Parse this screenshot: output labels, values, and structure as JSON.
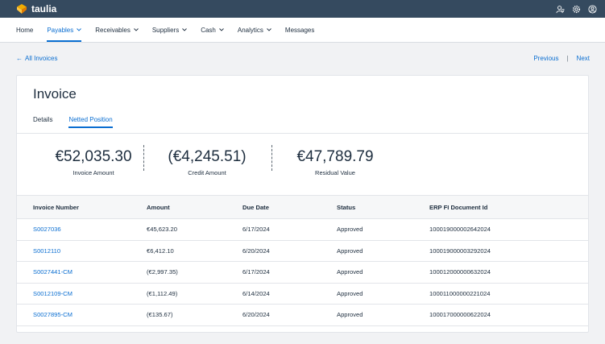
{
  "app": {
    "brand": "taulia"
  },
  "nav": [
    {
      "label": "Home",
      "dropdown": false,
      "active": false
    },
    {
      "label": "Payables",
      "dropdown": true,
      "active": true
    },
    {
      "label": "Receivables",
      "dropdown": true,
      "active": false
    },
    {
      "label": "Suppliers",
      "dropdown": true,
      "active": false
    },
    {
      "label": "Cash",
      "dropdown": true,
      "active": false
    },
    {
      "label": "Analytics",
      "dropdown": true,
      "active": false
    },
    {
      "label": "Messages",
      "dropdown": false,
      "active": false
    }
  ],
  "breadcrumb": {
    "back_label": "All Invoices",
    "previous_label": "Previous",
    "separator": "|",
    "next_label": "Next"
  },
  "page": {
    "title": "Invoice",
    "tabs": [
      {
        "label": "Details",
        "active": false
      },
      {
        "label": "Netted Position",
        "active": true
      }
    ]
  },
  "summary": {
    "invoice_amount": {
      "value": "€52,035.30",
      "label": "Invoice Amount"
    },
    "credit_amount": {
      "value": "(€4,245.51)",
      "label": "Credit Amount"
    },
    "residual_value": {
      "value": "€47,789.79",
      "label": "Residual Value"
    }
  },
  "table": {
    "headers": [
      "Invoice Number",
      "Amount",
      "Due Date",
      "Status",
      "ERP FI Document Id"
    ],
    "rows": [
      {
        "invoice_number": "S0027036",
        "amount": "€45,623.20",
        "due_date": "6/17/2024",
        "status": "Approved",
        "erp_id": "100019000002642024"
      },
      {
        "invoice_number": "S0012110",
        "amount": "€6,412.10",
        "due_date": "6/20/2024",
        "status": "Approved",
        "erp_id": "100019000003292024"
      },
      {
        "invoice_number": "S0027441-CM",
        "amount": "(€2,997.35)",
        "due_date": "6/17/2024",
        "status": "Approved",
        "erp_id": "100012000000632024"
      },
      {
        "invoice_number": "S0012109-CM",
        "amount": "(€1,112.49)",
        "due_date": "6/14/2024",
        "status": "Approved",
        "erp_id": "100011000000221024"
      },
      {
        "invoice_number": "S0027895-CM",
        "amount": "(€135.67)",
        "due_date": "6/20/2024",
        "status": "Approved",
        "erp_id": "100017000000622024"
      }
    ]
  },
  "colors": {
    "shell": "#354a5f",
    "accent": "#0a6ed1",
    "logo": "#f0ab00"
  },
  "icons": {
    "logo": "taulia-logo-icon",
    "notifications": "person-bell-icon",
    "settings": "gear-icon",
    "profile": "user-circle-icon"
  }
}
